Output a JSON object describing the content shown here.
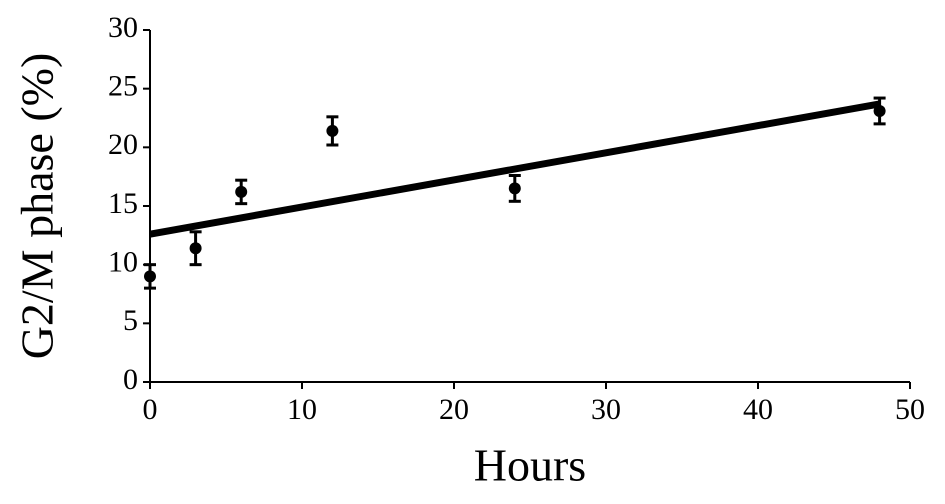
{
  "chart_data": {
    "type": "scatter",
    "xlabel": "Hours",
    "ylabel": "G2/M phase (%)",
    "x": [
      0,
      3,
      6,
      12,
      24,
      48
    ],
    "values": [
      9.0,
      11.4,
      16.2,
      21.4,
      16.5,
      23.1
    ],
    "errors": [
      1.0,
      1.4,
      1.0,
      1.2,
      1.1,
      1.1
    ],
    "color": "#000000",
    "trendline": {
      "x": [
        0,
        48
      ],
      "values": [
        12.6,
        23.7
      ]
    },
    "xlim": [
      0,
      50
    ],
    "xticks": [
      0,
      10,
      20,
      30,
      40,
      50
    ],
    "ylim": [
      0,
      30
    ],
    "yticks": [
      0,
      5,
      10,
      15,
      20,
      25,
      30
    ]
  }
}
